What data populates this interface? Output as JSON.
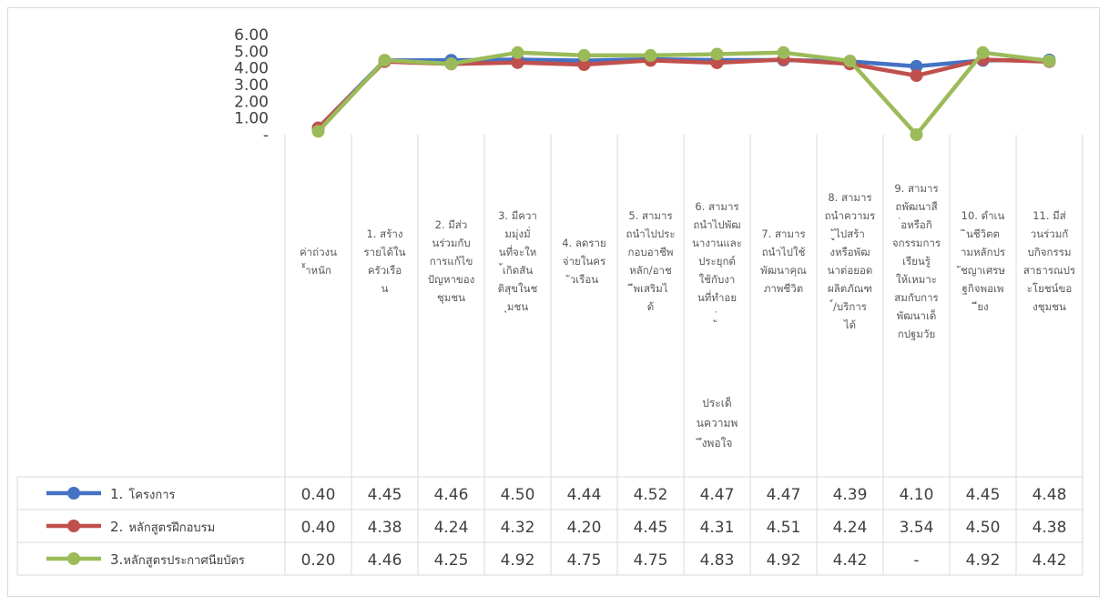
{
  "chart_data": {
    "type": "line",
    "title": "",
    "xlabel": "ประเด็นความพึงพอใจ",
    "ylabel": "",
    "ylim": [
      0,
      6
    ],
    "yticks": [
      "-",
      "1.00",
      "2.00",
      "3.00",
      "4.00",
      "5.00",
      "6.00"
    ],
    "grid": false,
    "legend": "data-table-left",
    "categories": [
      {
        "num": "",
        "text": "ค่าถ่วงน้ำหนัก"
      },
      {
        "num": "1.",
        "text": "สร้างรายได้ในครัวเรือน"
      },
      {
        "num": "2.",
        "text": "มีส่วนร่วมกับการแก้ไขปัญหาของชุมชน"
      },
      {
        "num": "3.",
        "text": "มีความมุ่งมั่นที่จะให้เกิดสันติสุขในชุมชน"
      },
      {
        "num": "4.",
        "text": "ลดรายจ่ายในครัวเรือน"
      },
      {
        "num": "5.",
        "text": "สามารถนำไปประกอบอาชีพหลัก/อาชีพเสริมได้"
      },
      {
        "num": "6.",
        "text": "สามารถนำไปพัฒนางานและประยุกต์ใช้กับงานที่ทำอยู่"
      },
      {
        "num": "7.",
        "text": "สามารถนำไปใช้พัฒนาคุณภาพชีวิต"
      },
      {
        "num": "8.",
        "text": "สามารถนำความรู้ไปสร้างหรือพัฒนาต่อยอดผลิตภัณฑ์/บริการได้"
      },
      {
        "num": "9.",
        "text": "สามารถพัฒนาสื่อหรือกิจกรรมการเรียนรู้ให้เหมาะสมกับการพัฒนาเด็กปฐมวัย"
      },
      {
        "num": "10.",
        "text": "ดำเนินชีวิตตามหลักปรัชญาเศรษฐกิจพอเพียง"
      },
      {
        "num": "11.",
        "text": "มีส่วนร่วมกับกิจกรรมสาธารณประโยชน์ของชุมชน"
      }
    ],
    "series": [
      {
        "num": "1.",
        "name": "โครงการ",
        "color": "#4472c4",
        "values": [
          0.4,
          4.45,
          4.46,
          4.5,
          4.44,
          4.52,
          4.47,
          4.47,
          4.39,
          4.1,
          4.45,
          4.48
        ],
        "labels": [
          "0.40",
          "4.45",
          "4.46",
          "4.50",
          "4.44",
          "4.52",
          "4.47",
          "4.47",
          "4.39",
          "4.10",
          "4.45",
          "4.48"
        ]
      },
      {
        "num": "2.",
        "name": "หลักสูตรฝึกอบรม",
        "color": "#c0504d",
        "values": [
          0.4,
          4.38,
          4.24,
          4.32,
          4.2,
          4.45,
          4.31,
          4.51,
          4.24,
          3.54,
          4.5,
          4.38
        ],
        "labels": [
          "0.40",
          "4.38",
          "4.24",
          "4.32",
          "4.20",
          "4.45",
          "4.31",
          "4.51",
          "4.24",
          "3.54",
          "4.50",
          "4.38"
        ]
      },
      {
        "num": "3.",
        "name": "หลักสูตรประกาศนียบัตร",
        "color": "#9bbb59",
        "values": [
          0.2,
          4.46,
          4.25,
          4.92,
          4.75,
          4.75,
          4.83,
          4.92,
          4.42,
          0,
          4.92,
          4.42
        ],
        "labels": [
          "0.20",
          "4.46",
          "4.25",
          "4.92",
          "4.75",
          "4.75",
          "4.83",
          "4.92",
          "4.42",
          "-",
          "4.92",
          "4.42"
        ]
      }
    ]
  }
}
